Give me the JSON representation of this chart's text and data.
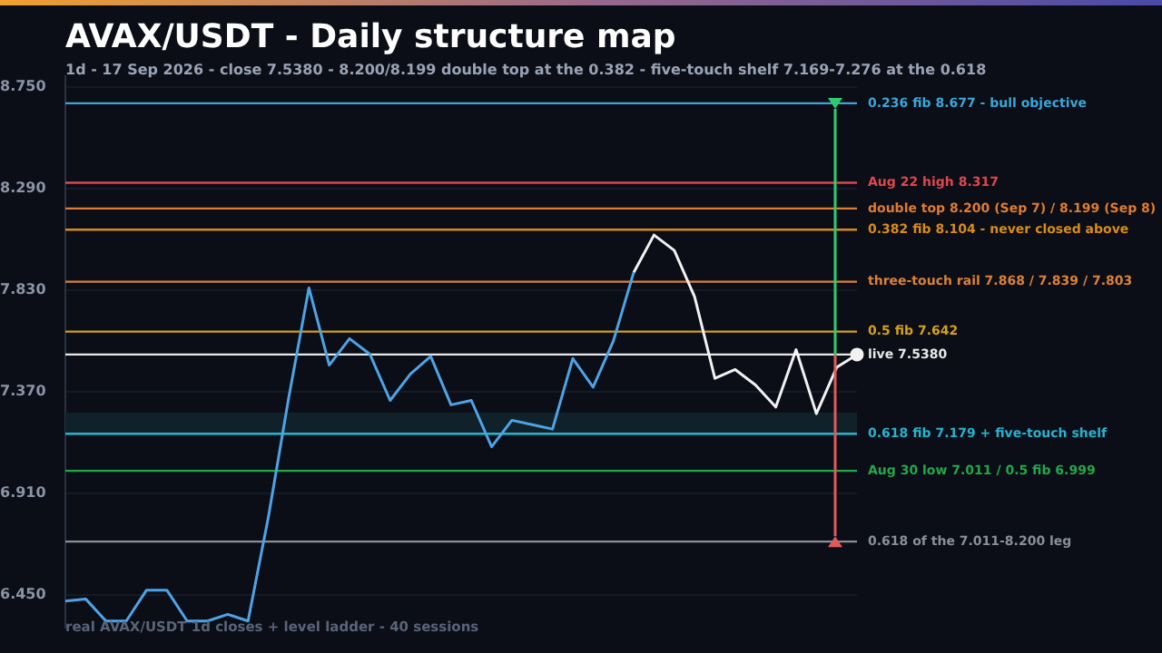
{
  "chart_data": {
    "type": "line",
    "title": "AVAX/USDT - Daily structure map",
    "subtitle": "1d - 17 Sep 2026 - close 7.5380 - 8.200/8.199 double top at the 0.382 - five-touch shelf 7.169-7.276 at the 0.618",
    "annotations": [
      "real AVAX/USDT 1d closes + level ladder - 40 sessions"
    ],
    "categories": [
      null,
      null,
      null,
      null,
      null,
      null,
      null,
      null,
      null,
      null,
      null,
      null,
      null,
      null,
      null,
      null,
      null,
      null,
      null,
      null,
      null,
      null,
      null,
      null,
      null,
      null,
      null,
      null,
      null,
      null,
      null,
      null,
      null,
      null,
      null,
      null,
      null,
      null,
      null,
      null
    ],
    "series": [
      {
        "color": "#4ea3e6",
        "values": [
          6.42,
          6.43,
          6.33,
          6.33,
          6.47,
          6.47,
          6.33,
          6.33,
          6.36,
          6.33,
          6.8,
          7.34,
          7.84,
          7.49,
          7.61,
          7.54,
          7.33,
          7.45,
          7.53,
          7.31,
          7.33,
          7.12,
          7.24,
          7.22,
          7.2,
          7.52,
          7.39,
          7.6,
          7.91,
          null,
          null,
          null,
          null,
          null,
          null,
          null,
          null,
          null,
          null,
          null
        ]
      },
      {
        "color": "#f2f2f2",
        "values": [
          null,
          null,
          null,
          null,
          null,
          null,
          null,
          null,
          null,
          null,
          null,
          null,
          null,
          null,
          null,
          null,
          null,
          null,
          null,
          null,
          null,
          null,
          null,
          null,
          null,
          null,
          null,
          null,
          7.91,
          8.08,
          8.01,
          7.8,
          7.43,
          7.47,
          7.4,
          7.3,
          7.56,
          7.27,
          7.48,
          7.538
        ]
      }
    ],
    "ylim": [
      6.3,
      8.8
    ],
    "yticks": [
      {
        "value": 6.45,
        "label": "6.450"
      },
      {
        "value": 6.91,
        "label": "6.910"
      },
      {
        "value": 7.37,
        "label": "7.370"
      },
      {
        "value": 7.83,
        "label": "7.830"
      },
      {
        "value": 8.29,
        "label": "8.290"
      },
      {
        "value": 8.75,
        "label": "8.750"
      }
    ],
    "grid": "y",
    "tick_labels": "y",
    "legend": false,
    "line_style": "solid",
    "ref_lines": [
      {
        "axis": "y",
        "value": 8.677,
        "label": "0.236 fib 8.677 - bull objective",
        "color": "#3aa6d8"
      },
      {
        "axis": "y",
        "value": 8.317,
        "label": "Aug 22 high 8.317",
        "color": "#e0464f"
      },
      {
        "axis": "y",
        "value": 8.2,
        "label": "double top 8.200 (Sep 7) / 8.199 (Sep 8)",
        "color": "#e07b30"
      },
      {
        "axis": "y",
        "value": 8.104,
        "label": "0.382 fib 8.104 - never closed above",
        "color": "#d98b1a"
      },
      {
        "axis": "y",
        "value": 7.868,
        "label": "three-touch rail 7.868 / 7.839 / 7.803",
        "color": "#d9823a"
      },
      {
        "axis": "y",
        "value": 7.642,
        "label": "0.5 fib 7.642",
        "color": "#d4a017"
      },
      {
        "axis": "y",
        "value": 7.538,
        "label": "live 7.5380",
        "color": "#e8e8e8"
      },
      {
        "axis": "y",
        "value": 7.179,
        "label": "0.618 fib 7.179 + five-touch shelf",
        "color": "#26b3cf"
      },
      {
        "axis": "y",
        "value": 7.011,
        "label": "Aug 30 low 7.011 / 0.5 fib 6.999",
        "color": "#22a84a"
      },
      {
        "axis": "y",
        "value": 6.69,
        "label": "0.618 of the 7.011-8.200 leg",
        "color": "#8a8f99"
      }
    ],
    "bands": [
      {
        "axis": "y",
        "from": 7.169,
        "to": 7.276,
        "color": "#10212a"
      }
    ]
  }
}
